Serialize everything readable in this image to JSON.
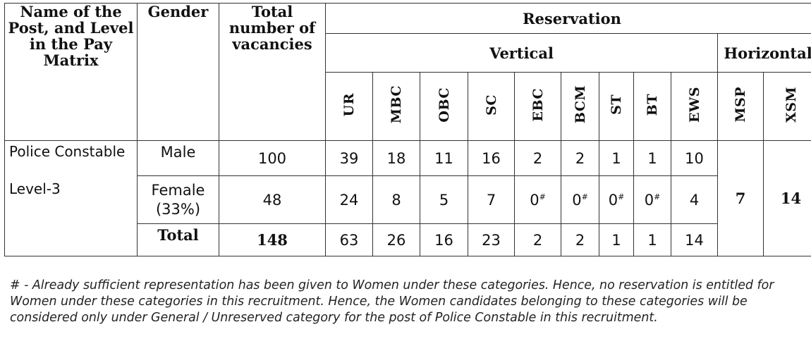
{
  "headers": {
    "post": "Name of the Post, and Level in the Pay Matrix",
    "gender": "Gender",
    "total_vacancies": "Total number of vacancies",
    "reservation": "Reservation",
    "vertical": "Vertical",
    "horizontal": "Horizontal",
    "vertical_categories": [
      "UR",
      "MBC",
      "OBC",
      "SC",
      "EBC",
      "BCM",
      "ST",
      "BT",
      "EWS"
    ],
    "horizontal_categories": [
      "MSP",
      "XSM"
    ]
  },
  "post": {
    "name": "Police Constable",
    "level": "Level-3"
  },
  "rows": [
    {
      "gender": "Male",
      "total": "100",
      "values": [
        "39",
        "18",
        "11",
        "16",
        "2",
        "2",
        "1",
        "1",
        "10"
      ]
    },
    {
      "gender": "Female (33%)",
      "total": "48",
      "values": [
        "24",
        "8",
        "5",
        "7",
        "0",
        "0",
        "0",
        "0",
        "4"
      ],
      "marked": [
        false,
        false,
        false,
        false,
        true,
        true,
        true,
        true,
        false
      ]
    },
    {
      "gender": "Total",
      "total": "148",
      "values": [
        "63",
        "26",
        "16",
        "23",
        "2",
        "2",
        "1",
        "1",
        "14"
      ]
    }
  ],
  "horizontal_values": {
    "MSP": "7",
    "XSM": "14"
  },
  "mark_symbol": "#",
  "footnote": "# - Already sufficient representation has been given to Women under these categories. Hence, no reservation is entitled for Women under these categories in this recruitment. Hence, the Women candidates belonging to these categories will be considered only under General / Unreserved category for the post of Police Constable in this recruitment."
}
